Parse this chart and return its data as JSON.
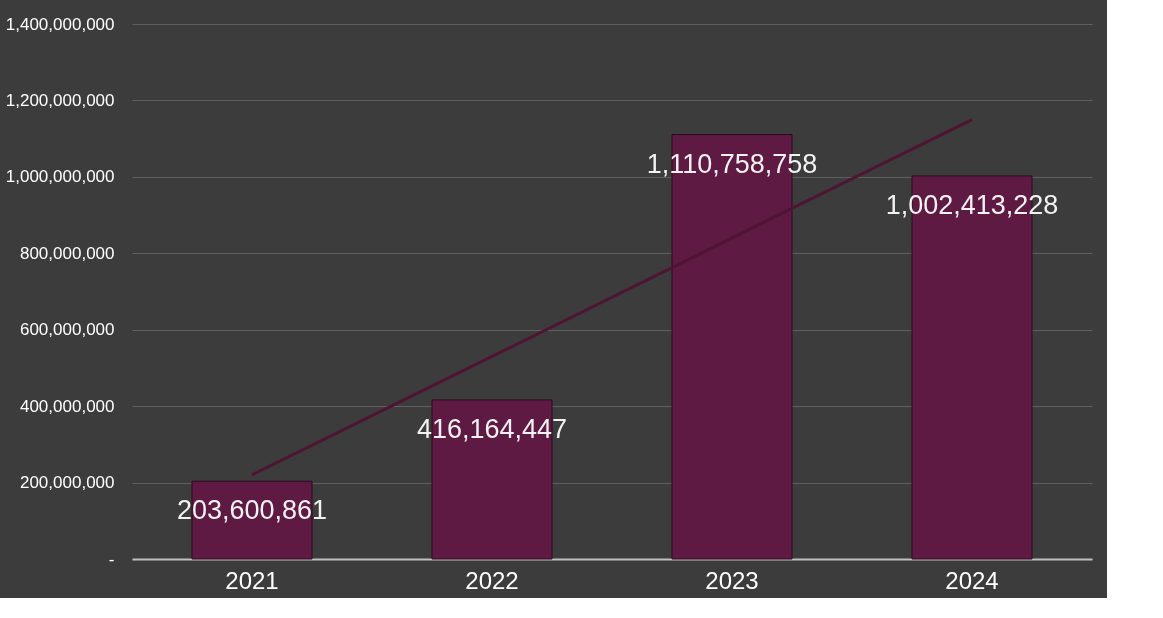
{
  "chart_data": {
    "type": "bar",
    "categories": [
      "2021",
      "2022",
      "2023",
      "2024"
    ],
    "series": [
      {
        "color": "#5e1a42",
        "values": [
          203600861,
          416164447,
          1110758758,
          1002413228
        ],
        "value_labels": [
          "203,600,861",
          "416,164,447",
          "1,110,758,758",
          "1,002,413,228"
        ]
      },
      {
        "type": "line",
        "color": "#4f1434",
        "values": [
          220000000,
          530000000,
          840000000,
          1150000000
        ]
      }
    ],
    "ylim": [
      0,
      1400000000
    ],
    "yticks": [
      {
        "value": 0,
        "label": "-"
      },
      {
        "value": 200000000,
        "label": "200,000,000"
      },
      {
        "value": 400000000,
        "label": "400,000,000"
      },
      {
        "value": 600000000,
        "label": "600,000,000"
      },
      {
        "value": 800000000,
        "label": "800,000,000"
      },
      {
        "value": 1000000000,
        "label": "1,000,000,000"
      },
      {
        "value": 1200000000,
        "label": "1,200,000,000"
      },
      {
        "value": 1400000000,
        "label": "1,400,000,000"
      }
    ],
    "grid": "y"
  }
}
